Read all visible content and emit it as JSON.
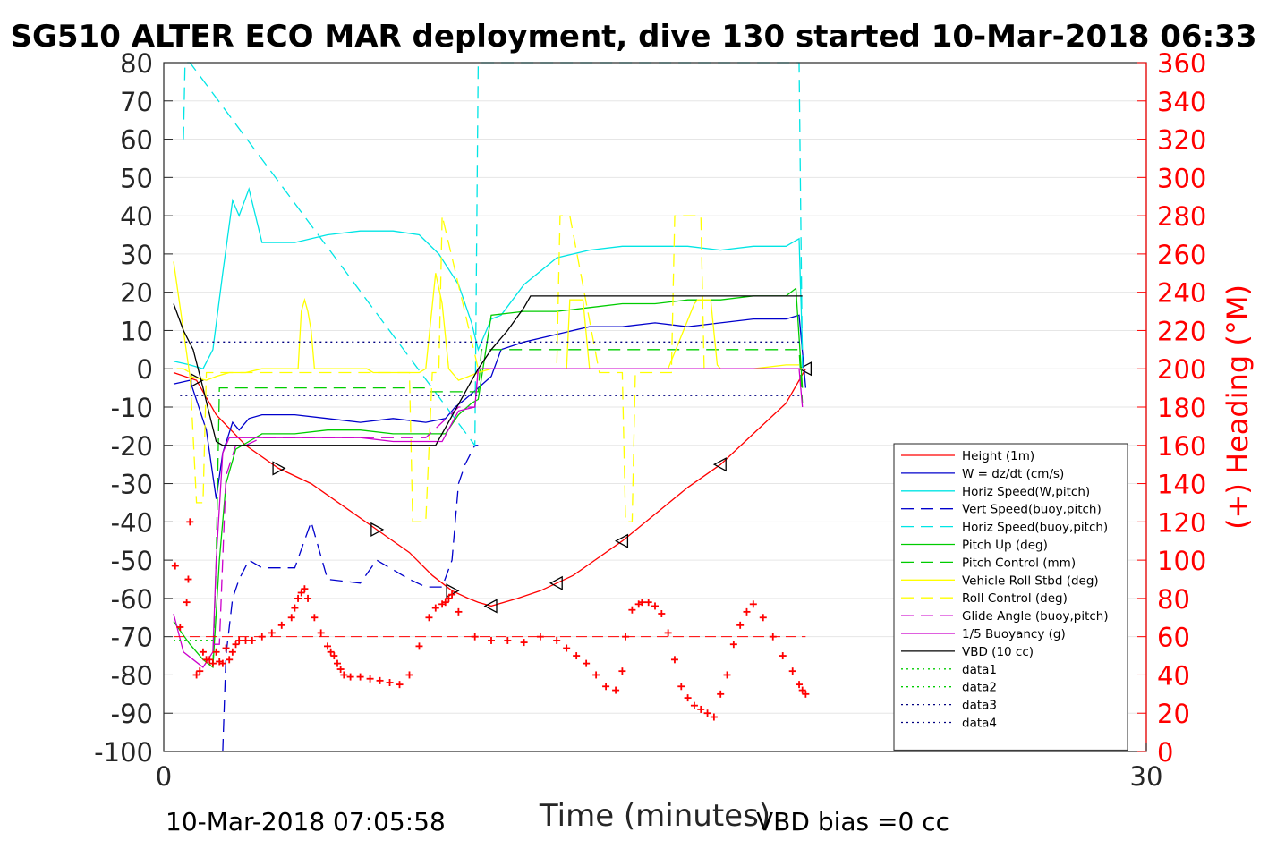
{
  "chart_data": {
    "type": "line",
    "title": "SG510 ALTER ECO MAR deployment, dive 130 started 10-Mar-2018 06:33",
    "xlabel": "Time (minutes)",
    "ylabel_right": "(+) Heading (°M)",
    "xlim": [
      0,
      30
    ],
    "ylim": [
      -100,
      80
    ],
    "ylim_right": [
      0,
      360
    ],
    "x_ticks": [
      "0",
      "30"
    ],
    "y_ticks": [
      "80",
      "70",
      "60",
      "50",
      "40",
      "30",
      "20",
      "10",
      "0",
      "-10",
      "-20",
      "-30",
      "-40",
      "-50",
      "-60",
      "-70",
      "-80",
      "-90",
      "-100"
    ],
    "y_ticks_right": [
      "360",
      "340",
      "320",
      "300",
      "280",
      "260",
      "240",
      "220",
      "200",
      "180",
      "160",
      "140",
      "120",
      "100",
      "80",
      "60",
      "40",
      "20",
      "0"
    ],
    "grid": "horizontal",
    "legend_position": "lower-right",
    "footer_left": "10-Mar-2018 07:05:58",
    "footer_right": "VBD bias =0 cc",
    "colors": {
      "height": "#ff0000",
      "w": "#0000cc",
      "horiz": "#00e5e5",
      "pitch": "#00cc00",
      "roll": "#ffff00",
      "glide": "#cc00cc",
      "vbd": "#000000",
      "heading_axis": "#ff0000"
    },
    "series": [
      {
        "name": "Height (1m)",
        "color": "#ff0000",
        "dash": "",
        "marker": "triangle",
        "x": [
          0.3,
          1.0,
          1.6,
          2.5,
          3.5,
          4.5,
          5.5,
          6.5,
          7.5,
          8.2,
          8.8,
          9.3,
          9.6,
          10.0,
          10.8,
          11.5,
          12.0,
          12.5,
          13.0,
          14.0,
          15.0,
          16.0,
          17.0,
          18.0,
          19.0,
          19.6
        ],
        "y": [
          -1,
          -3,
          -12,
          -20,
          -26,
          -30,
          -36,
          -42,
          -48,
          -54,
          -58,
          -60,
          -61,
          -62,
          -60,
          -58,
          -56,
          -54,
          -51,
          -45,
          -38,
          -31,
          -25,
          -17,
          -9,
          0
        ]
      },
      {
        "name": "W = dz/dt (cm/s)",
        "color": "#0000cc",
        "dash": "",
        "x": [
          0.3,
          0.8,
          1.3,
          1.6,
          1.8,
          2.1,
          2.3,
          2.6,
          3.0,
          4.0,
          5.0,
          6.0,
          7.0,
          8.0,
          8.6,
          8.9,
          9.2,
          9.6,
          10.0,
          10.3,
          11,
          12,
          13,
          14,
          15,
          16,
          17,
          18,
          19,
          19.4,
          19.6
        ],
        "y": [
          -4,
          -3,
          -16,
          -34,
          -22,
          -14,
          -16,
          -13,
          -12,
          -12,
          -13,
          -14,
          -13,
          -14,
          -13,
          -10,
          -8,
          -5,
          -2,
          5,
          7,
          9,
          11,
          11,
          12,
          11,
          12,
          13,
          13,
          14,
          -5
        ]
      },
      {
        "name": "Horiz Speed(W,pitch)",
        "color": "#00e5e5",
        "dash": "",
        "x": [
          0.3,
          0.8,
          1.2,
          1.5,
          1.8,
          2.1,
          2.3,
          2.6,
          3.0,
          4.0,
          5.0,
          6.0,
          7.0,
          7.8,
          8.4,
          9.0,
          9.4,
          9.6,
          10.0,
          10.3,
          11,
          12,
          13,
          14,
          15,
          16,
          17,
          18,
          19,
          19.4,
          19.5
        ],
        "y": [
          2,
          1,
          0,
          5,
          25,
          44,
          40,
          47,
          33,
          33,
          35,
          36,
          36,
          35,
          30,
          22,
          12,
          5,
          13,
          14,
          22,
          29,
          31,
          32,
          32,
          32,
          31,
          32,
          32,
          34,
          5
        ]
      },
      {
        "name": "Vert Speed(buoy,pitch)",
        "color": "#0000cc",
        "dash": "14,8",
        "x": [
          1.8,
          1.9,
          2.1,
          2.3,
          2.6,
          3.0,
          4.0,
          4.5,
          5.0,
          6.0,
          6.5,
          7.5,
          8.0,
          8.5,
          8.8,
          9.0,
          9.2,
          9.5,
          9.6
        ],
        "y": [
          -100,
          -75,
          -60,
          -55,
          -50,
          -52,
          -52,
          -40,
          -55,
          -56,
          -50,
          -55,
          -57,
          -57,
          -50,
          -30,
          -25,
          -20,
          -20
        ]
      },
      {
        "name": "Horiz Speed(buoy,pitch)",
        "color": "#00e5e5",
        "dash": "14,8",
        "x": [
          0.6,
          0.65,
          0.7,
          0.8,
          9.5,
          9.6,
          19.4,
          19.5
        ],
        "y": [
          60,
          80,
          80,
          80,
          -20,
          80,
          80,
          0
        ]
      },
      {
        "name": "Pitch Up (deg)",
        "color": "#00cc00",
        "dash": "",
        "x": [
          0.3,
          0.8,
          1.2,
          1.5,
          1.7,
          1.9,
          2.2,
          2.6,
          3.0,
          4.0,
          5.0,
          6.0,
          7.0,
          8.0,
          8.6,
          9.0,
          9.4,
          9.6,
          10.0,
          11,
          12,
          13,
          14,
          15,
          16,
          17,
          18,
          19,
          19.3,
          19.5
        ],
        "y": [
          -66,
          -72,
          -76,
          -78,
          -50,
          -30,
          -21,
          -19,
          -17,
          -17,
          -16,
          -16,
          -17,
          -17,
          -17,
          -12,
          -9,
          -8,
          14,
          15,
          15,
          16,
          17,
          17,
          18,
          18,
          19,
          19,
          21,
          -5
        ]
      },
      {
        "name": "Pitch Control (mm)",
        "color": "#00cc00",
        "dash": "14,8",
        "x": [
          1.5,
          1.5,
          1.6,
          1.7,
          8.0,
          8.1,
          9.6,
          9.7,
          19.4,
          19.5
        ],
        "y": [
          -78,
          -78,
          -50,
          -5,
          -5,
          -6,
          -6,
          5,
          5,
          -9
        ]
      },
      {
        "name": "Vehicle Roll Stbd (deg)",
        "color": "#ffff00",
        "dash": "",
        "x": [
          0.3,
          0.8,
          1.3,
          1.6,
          2.0,
          2.5,
          3.0,
          3.5,
          4.0,
          3.9,
          4.0,
          4.1,
          4.2,
          4.3,
          4.4,
          4.5,
          4.6,
          6.0,
          6.2,
          6.4,
          6.6,
          6.8,
          7.0,
          7.6,
          7.8,
          8.0,
          8.3,
          8.5,
          8.7,
          9.0,
          9.6,
          10.0,
          11,
          12,
          12.3,
          12.4,
          12.8,
          13,
          14,
          15,
          15.4,
          16.2,
          16.3,
          16.7,
          16.9,
          17,
          18,
          19,
          19.4
        ],
        "y": [
          28,
          -2,
          -3,
          -2,
          -1,
          -1,
          0,
          0,
          0,
          0,
          0,
          0,
          15,
          18,
          15,
          10,
          0,
          0,
          0,
          -1,
          -1,
          -1,
          -1,
          -1,
          -1,
          0,
          25,
          17,
          0,
          -3,
          -1,
          0,
          0,
          0,
          0,
          18,
          18,
          0,
          0,
          0,
          0,
          17,
          18,
          18,
          1,
          0,
          0,
          1,
          1
        ]
      },
      {
        "name": "Roll Control (deg)",
        "color": "#ffff00",
        "dash": "14,8",
        "x": [
          0.4,
          0.6,
          0.8,
          1.0,
          1.2,
          1.3,
          1.5,
          7.5,
          7.6,
          7.8,
          8.0,
          8.2,
          8.4,
          8.5,
          9.6,
          9.7,
          12.0,
          12.1,
          12.4,
          13.3,
          14.0,
          14.1,
          14.3,
          14.4,
          15.5,
          15.6,
          16.4,
          16.5,
          19.4,
          19.5
        ],
        "y": [
          0,
          0,
          -1,
          -35,
          -35,
          -1,
          -1,
          -1,
          -40,
          -40,
          -40,
          -1,
          -1,
          40,
          0,
          0,
          0,
          40,
          40,
          -1,
          -1,
          -40,
          -40,
          -1,
          -1,
          40,
          40,
          0,
          0,
          0
        ]
      },
      {
        "name": "Glide Angle (buoy,pitch)",
        "color": "#cc00cc",
        "dash": "14,8",
        "x": [
          1.5,
          1.7,
          1.9,
          2.2,
          2.5,
          3.0,
          4.0,
          5.0,
          6.0,
          7.0,
          8.0,
          9.0,
          9.5,
          9.6,
          19.5
        ],
        "y": [
          -72,
          -72,
          -28,
          -20,
          -20,
          -18,
          -18,
          -18,
          -18,
          -18,
          -18,
          -10,
          -10,
          0,
          0
        ]
      },
      {
        "name": "1/5 Buoyancy (g)",
        "color": "#cc00cc",
        "dash": "",
        "x": [
          0.3,
          0.6,
          0.9,
          1.2,
          1.5,
          1.6,
          1.8,
          2.0,
          2.2,
          3.0,
          4.0,
          5.0,
          6.0,
          7.0,
          8.0,
          8.5,
          9.0,
          9.5,
          9.6,
          19.4,
          19.5
        ],
        "y": [
          -64,
          -74,
          -76,
          -78,
          -74,
          -50,
          -22,
          -18,
          -18,
          -18,
          -18,
          -18,
          -18,
          -19,
          -19,
          -19,
          -11,
          -10,
          0,
          0,
          -10
        ]
      },
      {
        "name": "VBD (10 cc)",
        "color": "#000000",
        "dash": "",
        "x": [
          0.3,
          0.6,
          0.9,
          1.2,
          1.4,
          1.6,
          1.8,
          2.0,
          4.0,
          6.0,
          8.0,
          8.3,
          9.6,
          10.0,
          10.5,
          11.0,
          11.2,
          11.5,
          12,
          14,
          16,
          18,
          19,
          19.5
        ],
        "y": [
          17,
          10,
          5,
          -5,
          -12,
          -19,
          -20,
          -20,
          -20,
          -20,
          -20,
          -20,
          0,
          5,
          10,
          16,
          19,
          19,
          19,
          19,
          19,
          19,
          19,
          19
        ]
      },
      {
        "name": "data1",
        "color": "#00cc00",
        "dash": "2,4",
        "x": [
          0.3,
          1.6
        ],
        "y": [
          -71,
          -71
        ]
      },
      {
        "name": "data2",
        "color": "#00cc00",
        "dash": "2,4",
        "x": [
          0.3,
          1.6
        ],
        "y": [
          -71,
          -71
        ]
      },
      {
        "name": "data3",
        "color": "#000080",
        "dash": "2,4",
        "x": [
          0.5,
          19.5
        ],
        "y": [
          7,
          7
        ]
      },
      {
        "name": "data4",
        "color": "#000080",
        "dash": "2,4",
        "x": [
          0.5,
          19.5
        ],
        "y": [
          -7,
          -7
        ]
      }
    ],
    "heading_series": {
      "color": "#ff0000",
      "marker": "+",
      "x": [
        0.35,
        0.5,
        0.7,
        0.75,
        0.8,
        1.0,
        1.1,
        1.2,
        1.3,
        1.4,
        1.5,
        1.6,
        1.7,
        1.8,
        1.9,
        2.0,
        2.1,
        2.2,
        2.3,
        2.5,
        2.7,
        3.0,
        3.3,
        3.6,
        3.9,
        4.0,
        4.1,
        4.2,
        4.3,
        4.4,
        4.6,
        4.8,
        5.0,
        5.1,
        5.2,
        5.3,
        5.4,
        5.5,
        5.7,
        6.0,
        6.3,
        6.6,
        6.9,
        7.2,
        7.5,
        7.8,
        8.1,
        8.3,
        8.5,
        8.6,
        8.7,
        8.8,
        9.0,
        9.5,
        10.0,
        10.5,
        11.0,
        11.5,
        12.0,
        12.3,
        12.6,
        12.9,
        13.2,
        13.5,
        13.8,
        14.0,
        14.1,
        14.3,
        14.5,
        14.6,
        14.8,
        15.0,
        15.2,
        15.4,
        15.6,
        15.8,
        16.0,
        16.2,
        16.4,
        16.6,
        16.8,
        17.0,
        17.2,
        17.4,
        17.6,
        17.8,
        18.0,
        18.3,
        18.6,
        18.9,
        19.2,
        19.4,
        19.5,
        19.6
      ],
      "y": [
        97,
        65,
        78,
        90,
        120,
        40,
        42,
        52,
        48,
        48,
        46,
        52,
        47,
        46,
        54,
        48,
        52,
        56,
        58,
        58,
        58,
        60,
        62,
        66,
        70,
        75,
        80,
        83,
        85,
        80,
        70,
        62,
        55,
        52,
        50,
        46,
        43,
        40,
        39,
        39,
        38,
        37,
        36,
        35,
        40,
        55,
        70,
        75,
        77,
        78,
        80,
        82,
        73,
        60,
        58,
        58,
        57,
        60,
        58,
        54,
        50,
        46,
        40,
        34,
        32,
        42,
        60,
        74,
        77,
        78,
        78,
        76,
        72,
        62,
        48,
        34,
        28,
        24,
        22,
        20,
        18,
        30,
        40,
        56,
        66,
        73,
        77,
        70,
        60,
        50,
        42,
        35,
        32,
        30
      ]
    }
  }
}
